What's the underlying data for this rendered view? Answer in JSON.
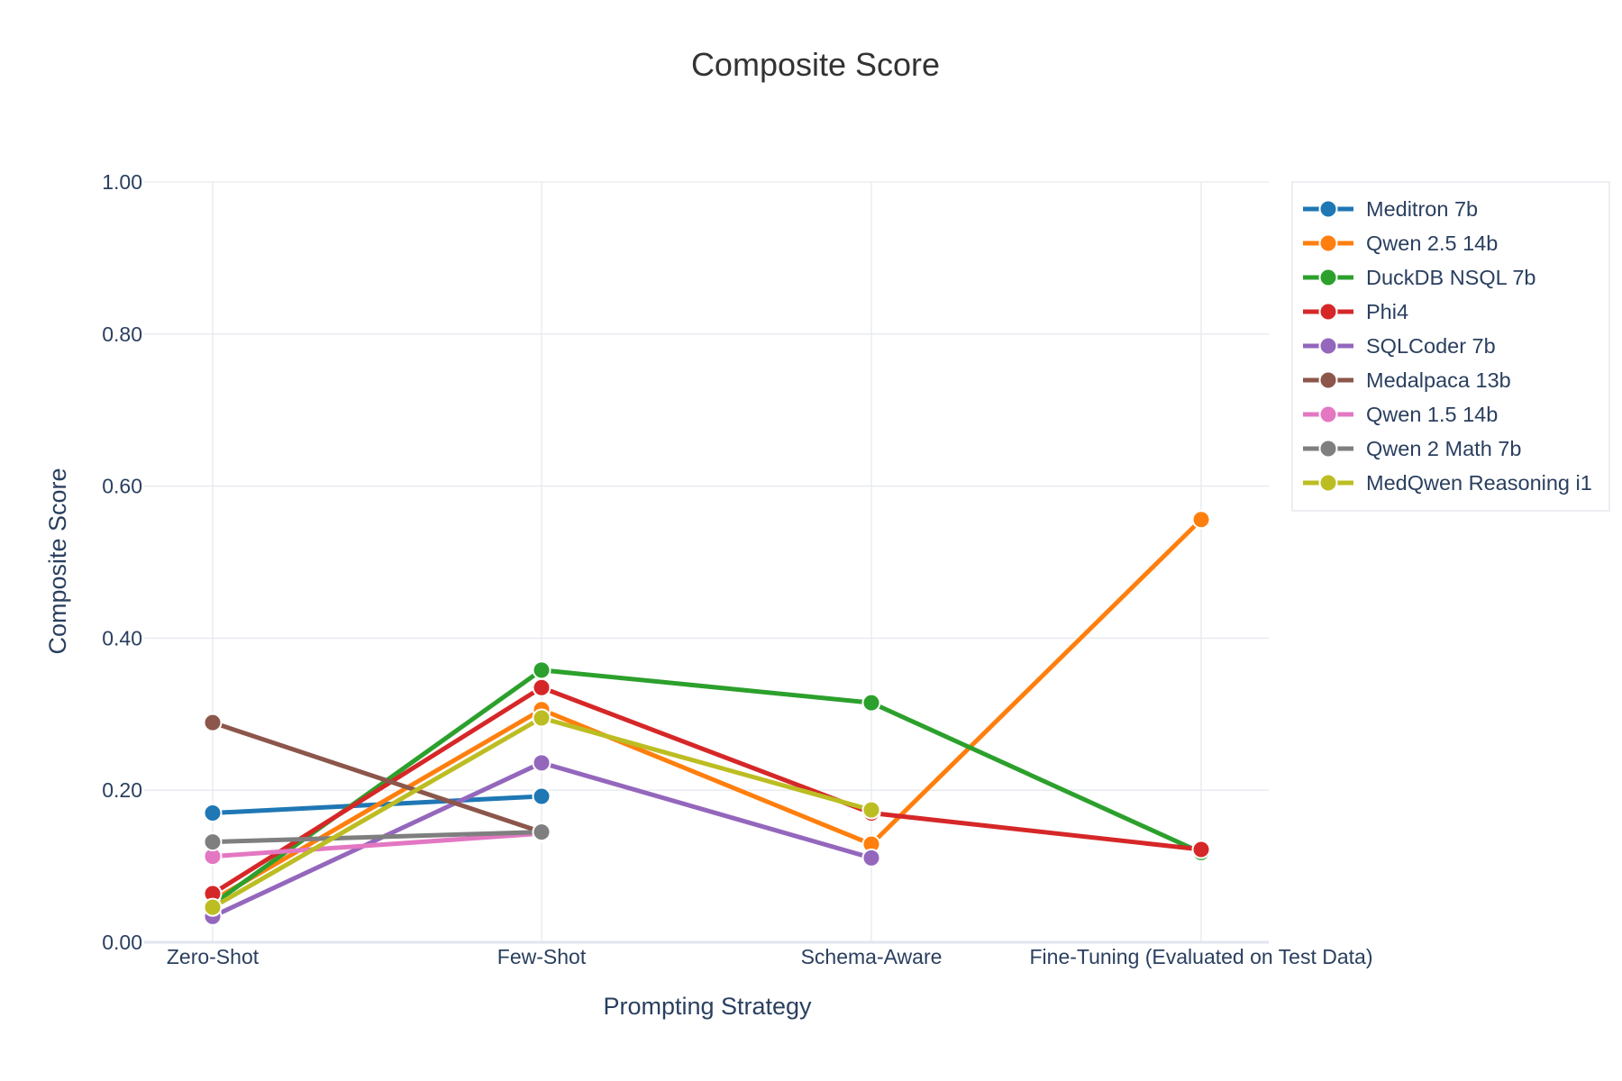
{
  "chart_data": {
    "type": "line",
    "title": "Composite Score",
    "xlabel": "Prompting Strategy",
    "ylabel": "Composite Score",
    "categories": [
      "Zero-Shot",
      "Few-Shot",
      "Schema-Aware",
      "Fine-Tuning (Evaluated on Test Data)"
    ],
    "y_ticks": [
      "0.00",
      "0.20",
      "0.40",
      "0.60",
      "0.80",
      "1.00"
    ],
    "ylim": [
      0,
      1
    ],
    "grid": true,
    "legend_position": "top-right",
    "series": [
      {
        "name": "Meditron 7b",
        "color": "#1f77b4",
        "values": [
          0.17,
          0.192,
          null,
          null
        ]
      },
      {
        "name": "Qwen 2.5 14b",
        "color": "#ff7f0e",
        "values": [
          0.055,
          0.306,
          0.129,
          0.556
        ]
      },
      {
        "name": "DuckDB NSQL 7b",
        "color": "#2ca02c",
        "values": [
          0.05,
          0.358,
          0.315,
          0.118
        ]
      },
      {
        "name": "Phi4",
        "color": "#d62728",
        "values": [
          0.064,
          0.335,
          0.17,
          0.122
        ]
      },
      {
        "name": "SQLCoder 7b",
        "color": "#9467bd",
        "values": [
          0.034,
          0.236,
          0.111,
          null
        ]
      },
      {
        "name": "Medalpaca 13b",
        "color": "#8c564b",
        "values": [
          0.289,
          0.145,
          null,
          null
        ]
      },
      {
        "name": "Qwen 1.5 14b",
        "color": "#e377c2",
        "values": [
          0.113,
          0.143,
          null,
          null
        ]
      },
      {
        "name": "Qwen 2 Math 7b",
        "color": "#7f7f7f",
        "values": [
          0.132,
          0.145,
          null,
          null
        ]
      },
      {
        "name": "MedQwen Reasoning i1",
        "color": "#bcbd22",
        "values": [
          0.046,
          0.295,
          0.174,
          null
        ]
      }
    ]
  }
}
